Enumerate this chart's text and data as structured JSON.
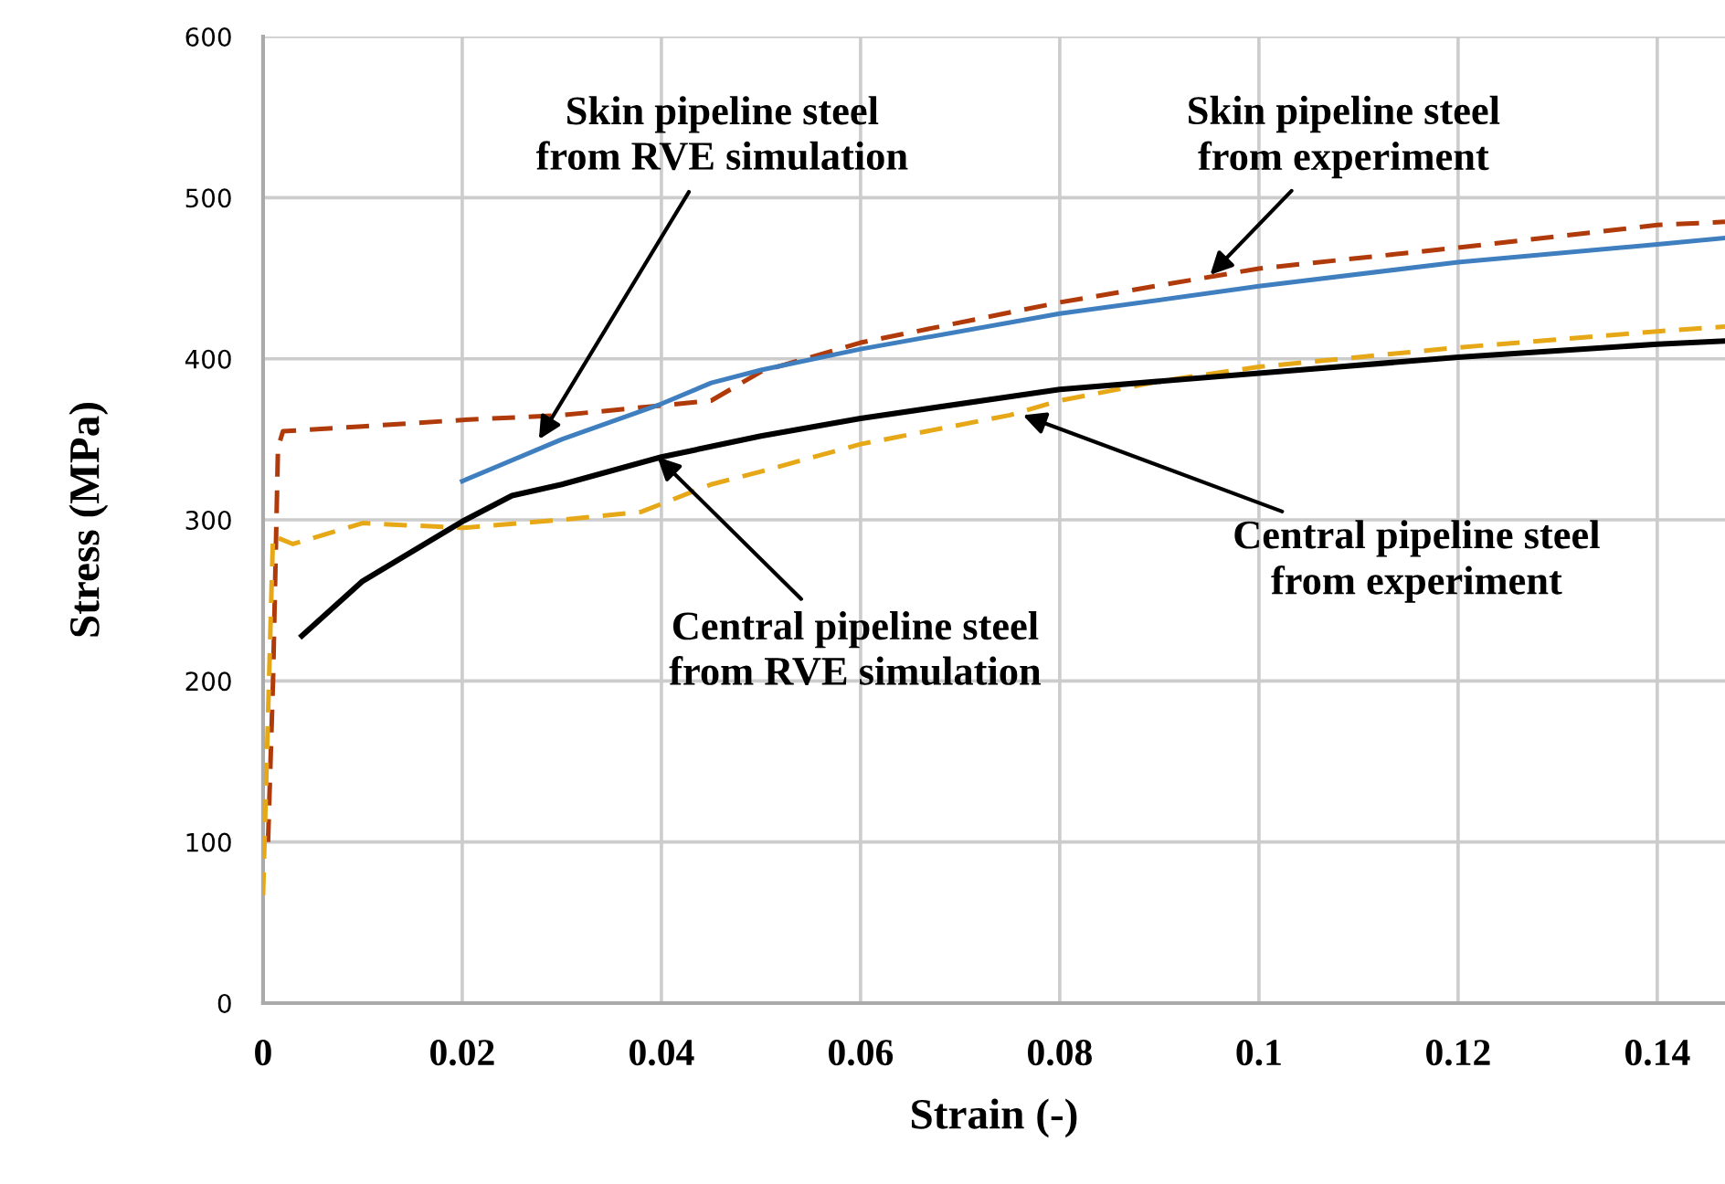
{
  "chart_data": {
    "type": "line",
    "xlabel": "Strain (-)",
    "ylabel": "Stress (MPa)",
    "xlim": [
      0,
      0.1468
    ],
    "ylim": [
      0,
      600
    ],
    "xticks": [
      0,
      0.02,
      0.04,
      0.06,
      0.08,
      0.1,
      0.12,
      0.14
    ],
    "yticks": [
      0,
      100,
      200,
      300,
      400,
      500,
      600
    ],
    "grid": true,
    "marker": "none",
    "series": [
      {
        "color": "#b03a0a",
        "line_style": "dashed",
        "x": [
          0.0005,
          0.001,
          0.0015,
          0.002,
          0.01,
          0.02,
          0.03,
          0.04,
          0.045,
          0.05,
          0.06,
          0.08,
          0.1,
          0.12,
          0.14,
          0.1468
        ],
        "values": [
          100,
          200,
          345,
          355,
          358,
          362,
          365,
          371,
          374,
          392,
          410,
          435,
          456,
          469,
          483,
          485
        ]
      },
      {
        "color": "#3f7fbf",
        "line_style": "solid",
        "x": [
          0.02,
          0.03,
          0.04,
          0.045,
          0.05,
          0.06,
          0.08,
          0.1,
          0.12,
          0.14,
          0.1468
        ],
        "values": [
          324,
          350,
          372,
          385,
          393,
          406,
          428,
          445,
          460,
          471,
          475
        ]
      },
      {
        "color": "#e6a817",
        "line_style": "dashed",
        "x": [
          0.0,
          0.001,
          0.003,
          0.01,
          0.02,
          0.03,
          0.038,
          0.045,
          0.05,
          0.06,
          0.075,
          0.08,
          0.09,
          0.1,
          0.12,
          0.14,
          0.1468
        ],
        "values": [
          67,
          290,
          285,
          298,
          295,
          300,
          305,
          322,
          330,
          347,
          365,
          374,
          386,
          395,
          407,
          417,
          420
        ]
      },
      {
        "color": "#000000",
        "line_style": "solid",
        "x": [
          0.0039,
          0.01,
          0.02,
          0.025,
          0.03,
          0.04,
          0.05,
          0.06,
          0.08,
          0.1,
          0.12,
          0.14,
          0.1468
        ],
        "values": [
          228,
          262,
          299,
          315,
          322,
          339,
          352,
          363,
          381,
          391,
          401,
          409,
          411
        ]
      }
    ],
    "annotations": [
      {
        "text": "Skin pipeline steel\nfrom RVE simulation",
        "x": 0.0277,
        "y": 350
      },
      {
        "text": "Skin pipeline steel\nfrom experiment",
        "x": 0.0951,
        "y": 452
      },
      {
        "text": "Central pipeline steel\nfrom experiment",
        "x": 0.0763,
        "y": 365
      },
      {
        "text": "Central pipeline steel\nfrom RVE simulation",
        "x": 0.0396,
        "y": 339
      }
    ]
  }
}
